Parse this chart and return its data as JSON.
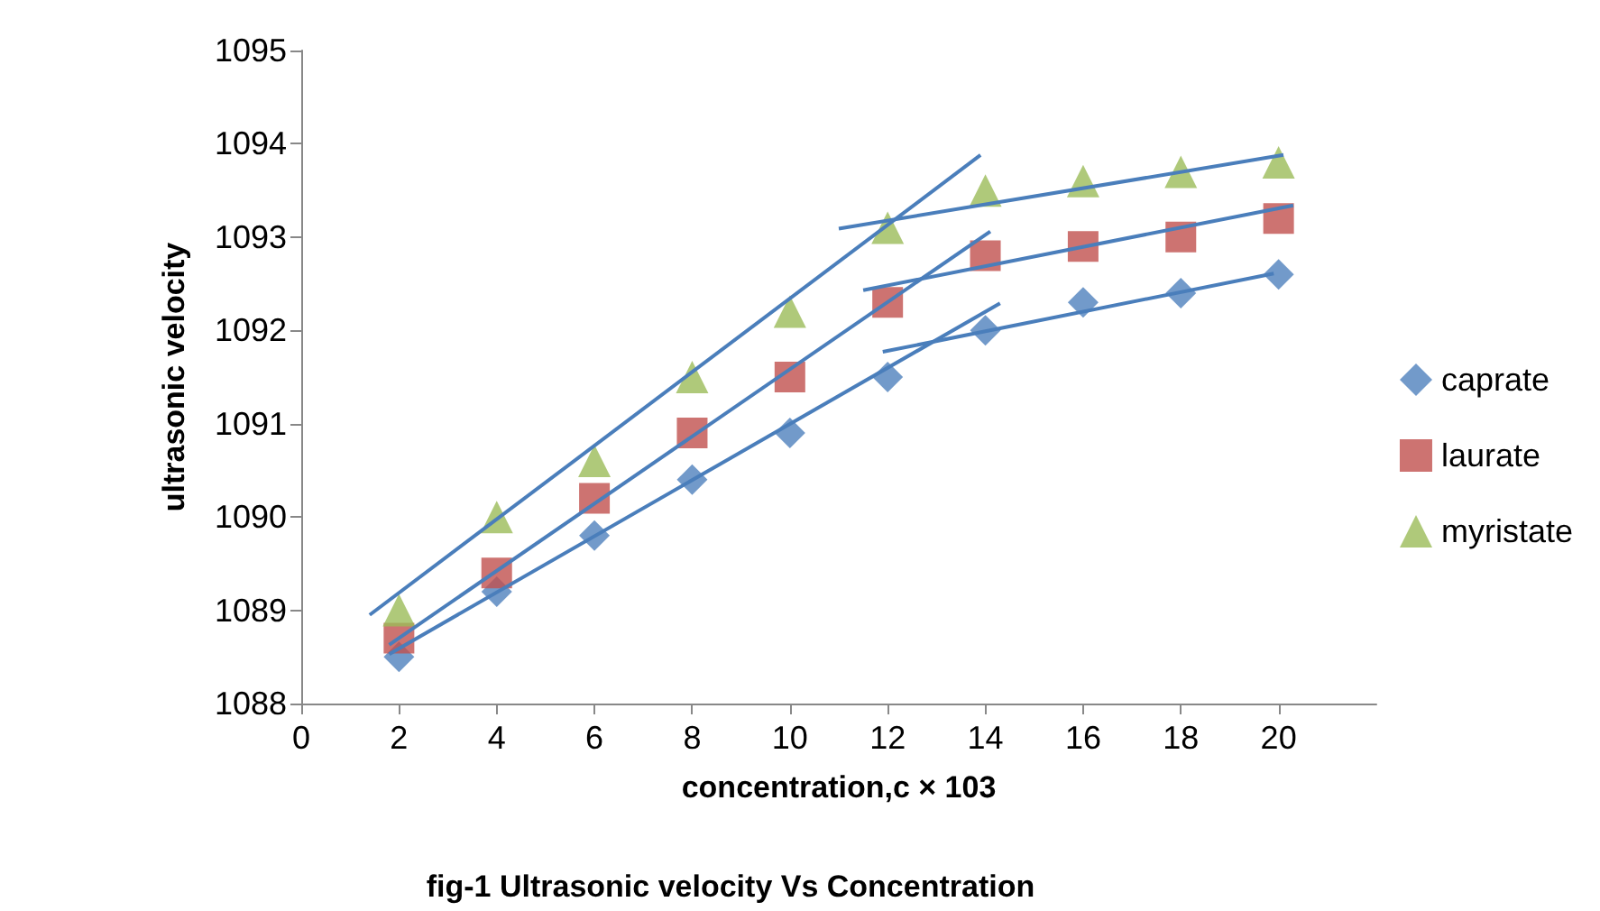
{
  "chart_data": {
    "type": "scatter",
    "title": "fig-1 Ultrasonic velocity Vs Concentration",
    "xlabel": "concentration,c × 103",
    "ylabel": "ultrasonic velocity",
    "x": [
      2,
      4,
      6,
      8,
      10,
      12,
      14,
      16,
      18,
      20
    ],
    "series": [
      {
        "name": "caprate",
        "color": "#4f81bd",
        "marker": "diamond",
        "values": [
          1088.5,
          1089.2,
          1089.8,
          1090.4,
          1090.9,
          1091.5,
          1092.0,
          1092.3,
          1092.4,
          1092.6
        ]
      },
      {
        "name": "laurate",
        "color": "#c0504d",
        "marker": "square",
        "values": [
          1088.7,
          1089.4,
          1090.2,
          1090.9,
          1091.5,
          1092.3,
          1092.8,
          1092.9,
          1093.0,
          1093.2
        ]
      },
      {
        "name": "myristate",
        "color": "#9bbb59",
        "marker": "triangle",
        "values": [
          1089.0,
          1090.0,
          1090.6,
          1091.5,
          1092.2,
          1093.1,
          1093.5,
          1093.6,
          1093.7,
          1093.8
        ]
      },
      {
        "type": "line",
        "color": "#4a7ebb",
        "marker": "none",
        "x": [
          1.8,
          14.3
        ],
        "values": [
          1088.53,
          1092.29
        ]
      },
      {
        "type": "line",
        "color": "#4a7ebb",
        "marker": "none",
        "x": [
          1.8,
          14.1
        ],
        "values": [
          1088.63,
          1093.06
        ]
      },
      {
        "type": "line",
        "color": "#4a7ebb",
        "marker": "none",
        "x": [
          1.4,
          13.9
        ],
        "values": [
          1088.95,
          1093.88
        ]
      },
      {
        "type": "line",
        "color": "#4a7ebb",
        "marker": "none",
        "x": [
          11.9,
          19.9
        ],
        "values": [
          1091.77,
          1092.61
        ]
      },
      {
        "type": "line",
        "color": "#4a7ebb",
        "marker": "none",
        "x": [
          11.5,
          20.3
        ],
        "values": [
          1092.43,
          1093.34
        ]
      },
      {
        "type": "line",
        "color": "#4a7ebb",
        "marker": "none",
        "x": [
          11.0,
          20.1
        ],
        "values": [
          1093.09,
          1093.88
        ]
      }
    ],
    "xlim": [
      0,
      22
    ],
    "xticks": [
      0,
      2,
      4,
      6,
      8,
      10,
      12,
      14,
      16,
      18,
      20
    ],
    "ylim": [
      1088,
      1095
    ],
    "yticks": [
      1088,
      1089,
      1090,
      1091,
      1092,
      1093,
      1094,
      1095
    ],
    "grid": false,
    "legend": "right"
  }
}
